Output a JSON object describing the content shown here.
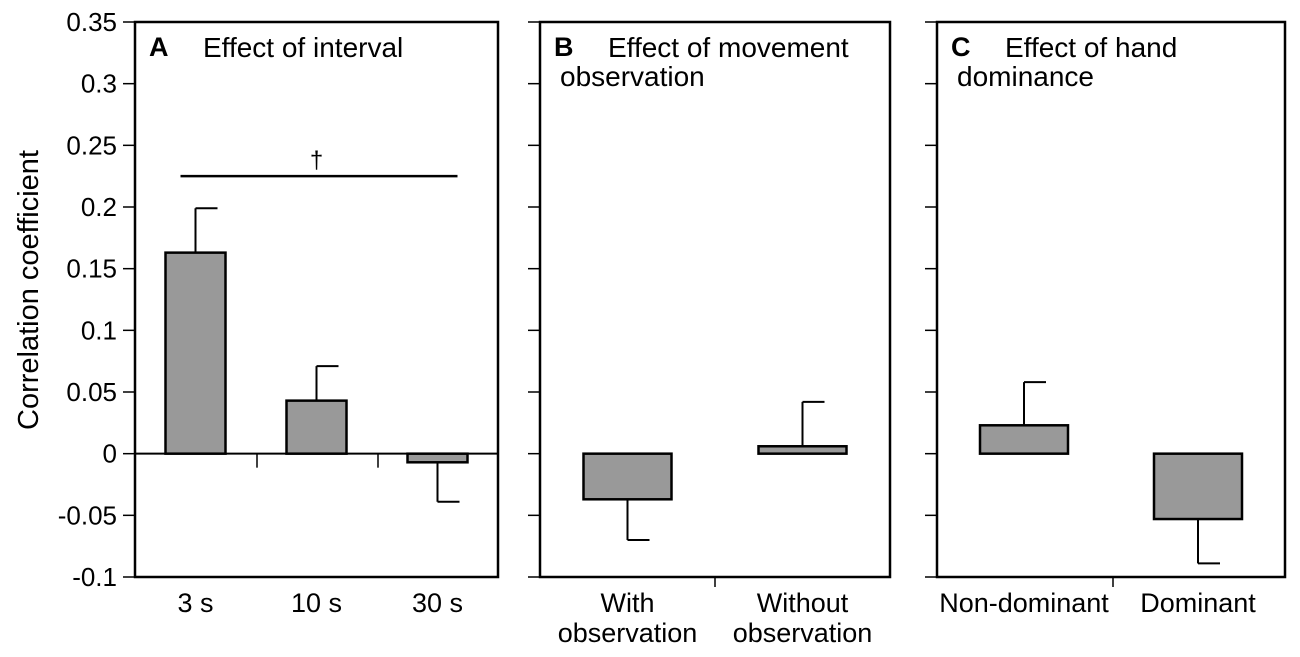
{
  "chart_data": [
    {
      "type": "bar",
      "panel": "A",
      "title": "Effect of interval",
      "title_lines": [
        "Effect of interval"
      ],
      "ylabel": "Correlation coefficient",
      "ylim": [
        -0.1,
        0.35
      ],
      "yticks": [
        -0.1,
        -0.05,
        0,
        0.05,
        0.1,
        0.15,
        0.2,
        0.25,
        0.3,
        0.35
      ],
      "ytick_labels": [
        "-0.1",
        "-0.05",
        "0",
        "0.05",
        "0.1",
        "0.15",
        "0.2",
        "0.25",
        "0.3",
        "0.35"
      ],
      "categories": [
        [
          "3 s"
        ],
        [
          "10 s"
        ],
        [
          "30 s"
        ]
      ],
      "values": [
        0.163,
        0.043,
        -0.007
      ],
      "errors": [
        0.036,
        0.028,
        0.032
      ],
      "bar_color": "#999999",
      "significance": {
        "from": 0,
        "to": 2,
        "y": 0.225,
        "label": "†"
      }
    },
    {
      "type": "bar",
      "panel": "B",
      "title": "Effect of movement observation",
      "title_lines": [
        "Effect of movement",
        "observation"
      ],
      "ylim": [
        -0.1,
        0.35
      ],
      "yticks": [
        -0.1,
        -0.05,
        0,
        0.05,
        0.1,
        0.15,
        0.2,
        0.25,
        0.3,
        0.35
      ],
      "categories": [
        [
          "With",
          "observation"
        ],
        [
          "Without",
          "observation"
        ]
      ],
      "values": [
        -0.037,
        0.006
      ],
      "errors": [
        0.033,
        0.036
      ],
      "bar_color": "#999999"
    },
    {
      "type": "bar",
      "panel": "C",
      "title": "Effect of hand dominance",
      "title_lines": [
        "Effect of hand",
        "dominance"
      ],
      "ylim": [
        -0.1,
        0.35
      ],
      "yticks": [
        -0.1,
        -0.05,
        0,
        0.05,
        0.1,
        0.15,
        0.2,
        0.25,
        0.3,
        0.35
      ],
      "categories": [
        [
          "Non-dominant"
        ],
        [
          "Dominant"
        ]
      ],
      "values": [
        0.023,
        -0.053
      ],
      "errors": [
        0.035,
        0.036
      ],
      "bar_color": "#999999"
    }
  ]
}
